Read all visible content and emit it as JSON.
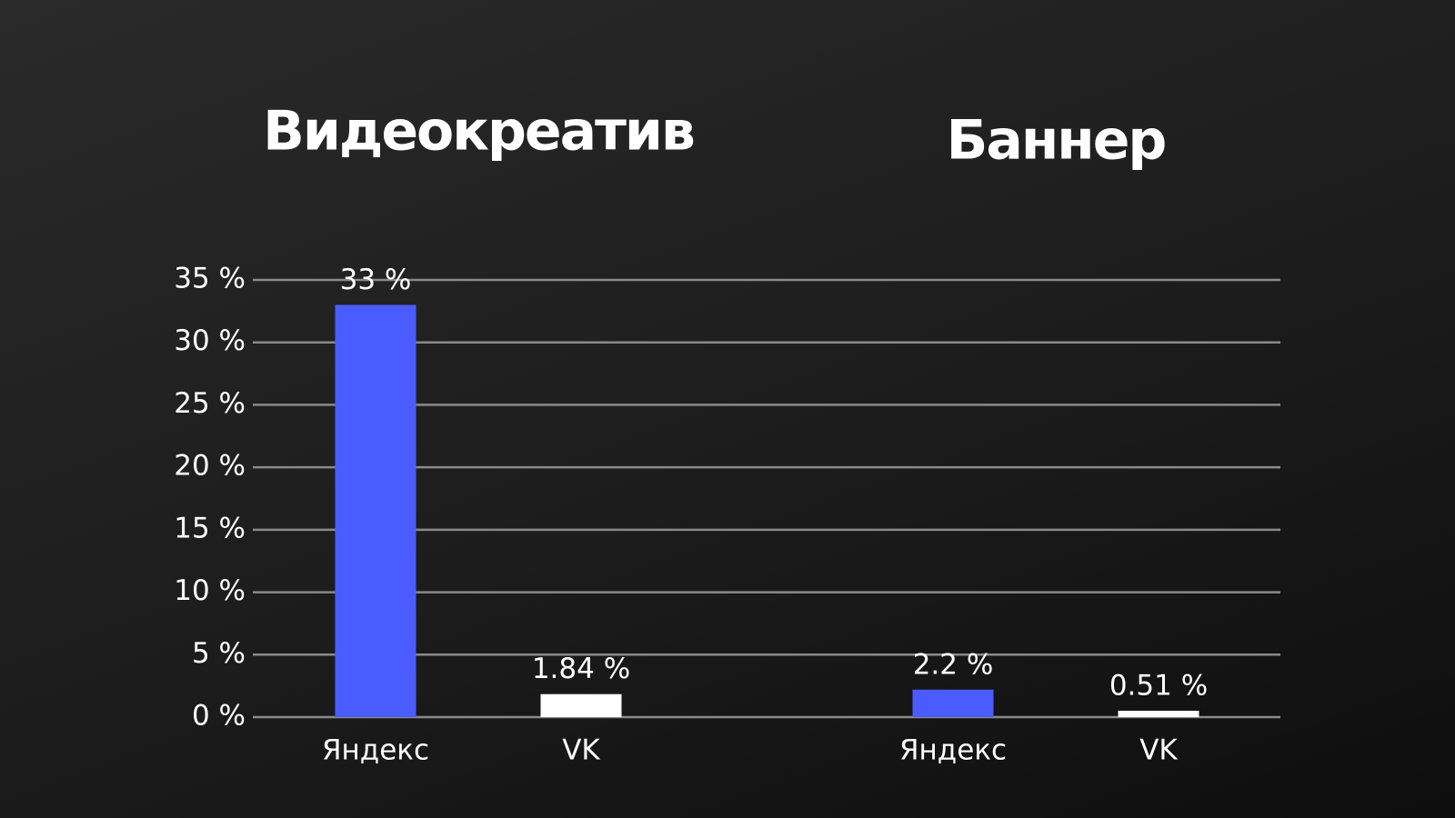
{
  "chart_data": {
    "type": "bar",
    "categories": [
      "Видеокреатив",
      "Баннер"
    ],
    "series": [
      {
        "name": "Яндекс",
        "color": "#4a5cff",
        "values": [
          33,
          2.2
        ],
        "value_labels": [
          "33 %",
          "2.2 %"
        ]
      },
      {
        "name": "VK",
        "color": "#ffffff",
        "values": [
          1.84,
          0.51
        ],
        "value_labels": [
          "1.84 %",
          "0.51 %"
        ]
      }
    ],
    "ylim": [
      0,
      35
    ],
    "yticks": [
      {
        "value": 0,
        "label": "0 %"
      },
      {
        "value": 5,
        "label": "5 %"
      },
      {
        "value": 10,
        "label": "10 %"
      },
      {
        "value": 15,
        "label": "15 %"
      },
      {
        "value": 20,
        "label": "20 %"
      },
      {
        "value": 25,
        "label": "25 %"
      },
      {
        "value": 30,
        "label": "30 %"
      },
      {
        "value": 35,
        "label": "35 %"
      }
    ],
    "grid": true
  }
}
